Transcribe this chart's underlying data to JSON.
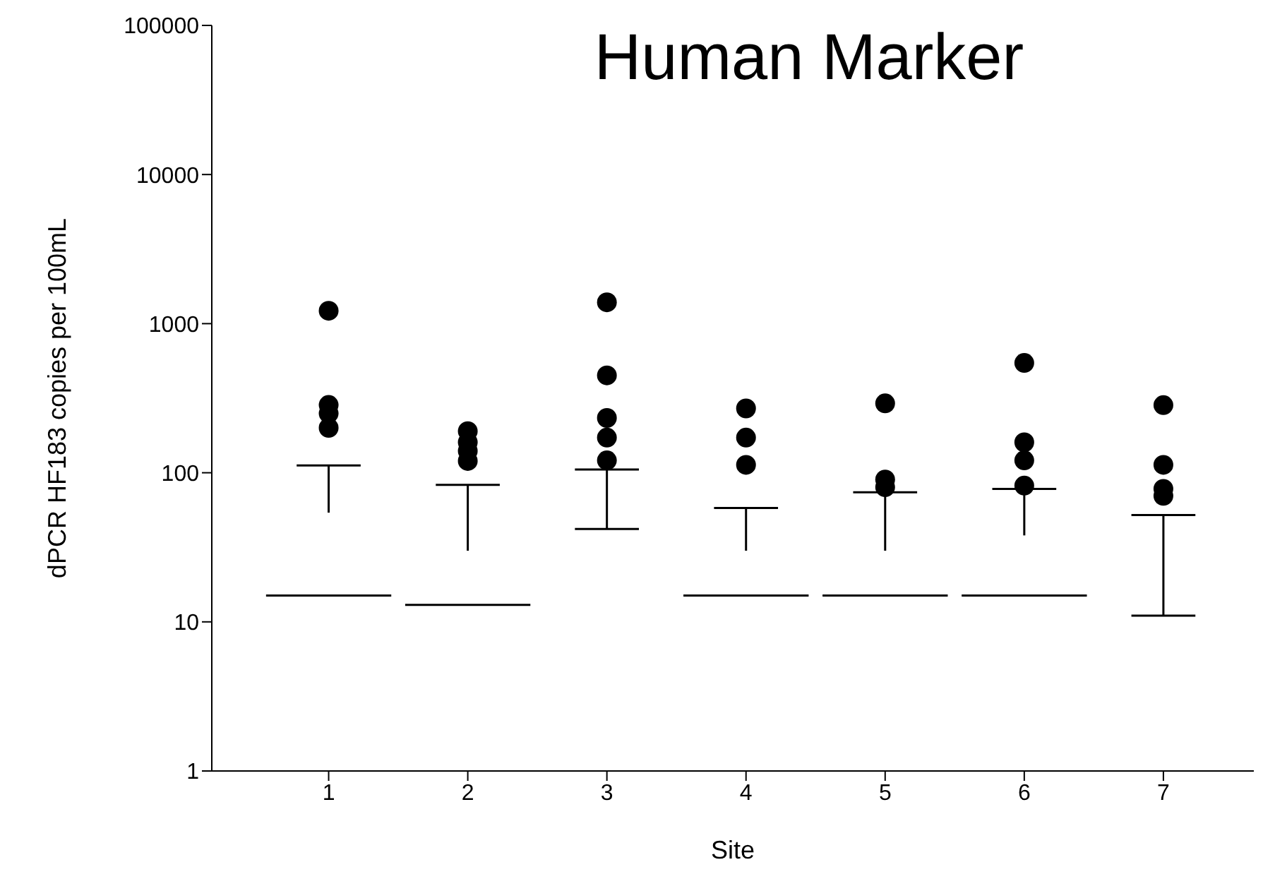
{
  "chart_data": {
    "type": "box",
    "title": "Human Marker",
    "xlabel": "Site",
    "ylabel": "dPCR HF183 copies per 100mL",
    "categories": [
      "1",
      "2",
      "3",
      "4",
      "5",
      "6",
      "7"
    ],
    "boxes": [
      {
        "low": 15,
        "q1": 15,
        "median": 15,
        "q3": 54,
        "high": 112,
        "outliers": [
          1220,
          285,
          250,
          200
        ]
      },
      {
        "low": 13,
        "q1": 13,
        "median": 13,
        "q3": 30,
        "high": 83,
        "outliers": [
          190,
          160,
          140,
          120
        ]
      },
      {
        "low": 42,
        "q1": 42,
        "median": null,
        "q3": 42,
        "high": 105,
        "outliers": [
          1390,
          450,
          233,
          172,
          121
        ]
      },
      {
        "low": 15,
        "q1": 15,
        "median": 15,
        "q3": 30,
        "high": 58,
        "outliers": [
          270,
          172,
          113
        ]
      },
      {
        "low": 15,
        "q1": 15,
        "median": 15,
        "q3": 30,
        "high": 74,
        "outliers": [
          292,
          90,
          80
        ]
      },
      {
        "low": 15,
        "q1": 15,
        "median": 15,
        "q3": 38,
        "high": 78,
        "outliers": [
          545,
          160,
          121,
          82
        ]
      },
      {
        "low": 11,
        "q1": 11,
        "median": null,
        "q3": 11,
        "high": 52,
        "outliers": [
          284,
          113,
          78,
          70
        ]
      }
    ],
    "color": "#000000",
    "log": "y",
    "ylim": [
      1,
      100000
    ],
    "yticks": [
      1,
      10,
      100,
      1000,
      10000,
      100000
    ]
  }
}
